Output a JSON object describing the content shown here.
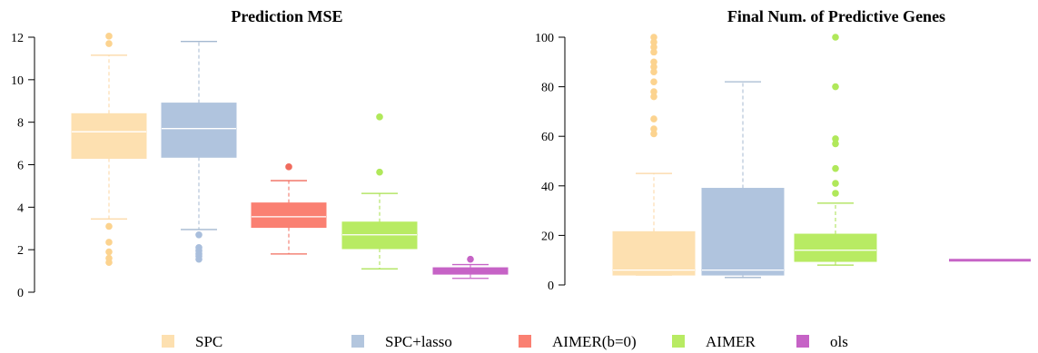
{
  "chart_data": [
    {
      "type": "box",
      "title": "Prediction MSE",
      "ylim": [
        0,
        12
      ],
      "yticks": [
        0,
        2,
        4,
        6,
        8,
        10,
        12
      ],
      "grid": false,
      "series": [
        {
          "name": "SPC",
          "whisker_low": 3.45,
          "q1": 6.3,
          "median": 7.55,
          "q3": 8.4,
          "whisker_high": 11.15,
          "outliers": [
            12.05,
            11.7,
            3.1,
            2.35,
            1.9,
            1.6,
            1.4
          ]
        },
        {
          "name": "SPC+lasso",
          "whisker_low": 2.95,
          "q1": 6.35,
          "median": 7.7,
          "q3": 8.9,
          "whisker_high": 11.8,
          "outliers": [
            2.7,
            2.1,
            1.95,
            1.8,
            1.7,
            1.55
          ]
        },
        {
          "name": "AIMER(b=0)",
          "whisker_low": 1.8,
          "q1": 3.05,
          "median": 3.55,
          "q3": 4.2,
          "whisker_high": 5.25,
          "outliers": [
            5.9
          ]
        },
        {
          "name": "AIMER",
          "whisker_low": 1.1,
          "q1": 2.05,
          "median": 2.7,
          "q3": 3.3,
          "whisker_high": 4.65,
          "outliers": [
            8.25,
            5.65
          ]
        },
        {
          "name": "ols",
          "whisker_low": 0.65,
          "q1": 0.85,
          "median": 1.0,
          "q3": 1.15,
          "whisker_high": 1.3,
          "outliers": [
            1.55
          ]
        }
      ]
    },
    {
      "type": "box",
      "title": "Final Num. of  Predictive Genes",
      "ylim": [
        0,
        100
      ],
      "yticks": [
        0,
        20,
        40,
        60,
        80,
        100
      ],
      "grid": false,
      "series": [
        {
          "name": "SPC",
          "whisker_low": 4,
          "q1": 4,
          "median": 6,
          "q3": 21.5,
          "whisker_high": 45,
          "outliers": [
            100,
            98,
            96,
            94,
            90,
            88,
            86,
            82,
            78,
            76,
            67,
            63,
            61
          ]
        },
        {
          "name": "SPC+lasso",
          "whisker_low": 3,
          "q1": 4,
          "median": 6,
          "q3": 39,
          "whisker_high": 82,
          "outliers": []
        },
        {
          "name": "AIMER",
          "whisker_low": 8,
          "q1": 9.5,
          "median": 14,
          "q3": 20.5,
          "whisker_high": 33,
          "outliers": [
            100,
            80,
            59,
            57,
            47,
            41,
            37
          ]
        },
        {
          "name": "ols",
          "whisker_low": 10,
          "q1": 10,
          "median": 10,
          "q3": 10,
          "whisker_high": 10,
          "outliers": []
        }
      ]
    }
  ],
  "legend": {
    "placement": "bottom",
    "items": [
      {
        "label": "SPC",
        "color": "#fde0b0"
      },
      {
        "label": "SPC+lasso",
        "color": "#b3c6de"
      },
      {
        "label": "AIMER(b=0)",
        "color": "#fa8072"
      },
      {
        "label": "AIMER",
        "color": "#b8eb63"
      },
      {
        "label": "ols",
        "color": "#c663c6"
      }
    ]
  },
  "colors": {
    "SPC": {
      "fill": "#fde0b0",
      "line": "#ffffff",
      "whisker": "#fcd6a0",
      "point": "#fcd38f"
    },
    "SPC+lasso": {
      "fill": "#b0c4de",
      "line": "#ffffff",
      "whisker": "#a4b8d0",
      "point": "#a9bedc"
    },
    "AIMER(b=0)": {
      "fill": "#fa8072",
      "line": "#ffffff",
      "whisker": "#f06b5d",
      "point": "#f06b5d"
    },
    "AIMER": {
      "fill": "#b8eb63",
      "line": "#ffffff",
      "whisker": "#a7e04c",
      "point": "#b0e85a"
    },
    "ols": {
      "fill": "#c663c6",
      "line": "#c663c6",
      "whisker": "#c663c6",
      "point": "#c663c6"
    }
  }
}
